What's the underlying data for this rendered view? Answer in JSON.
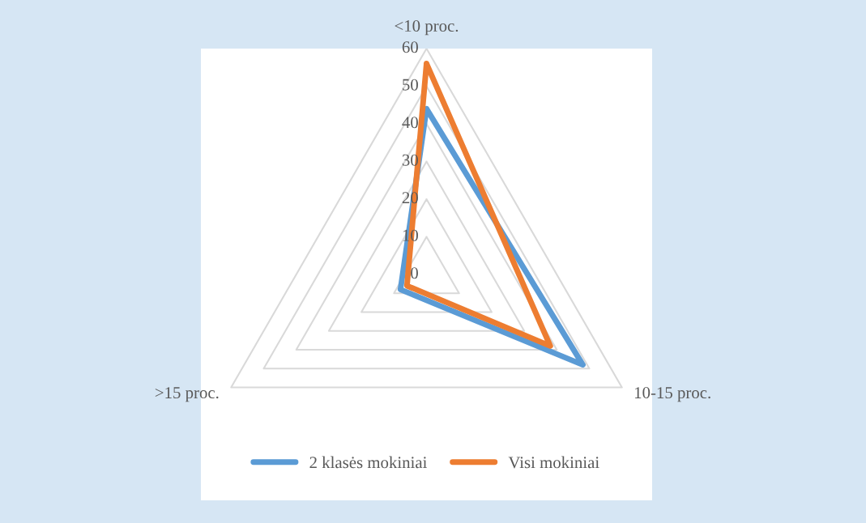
{
  "chart_data": {
    "type": "radar",
    "categories": [
      "<10 proc.",
      "10-15 proc.",
      ">15 proc."
    ],
    "series": [
      {
        "name": "2 klasės mokiniai",
        "color": "#5b9bd5",
        "values": [
          44,
          48,
          8
        ]
      },
      {
        "name": "Visi mokiniai",
        "color": "#ed7d31",
        "values": [
          56,
          38,
          6
        ]
      }
    ],
    "ylim": [
      0,
      60
    ],
    "yticks": [
      0,
      10,
      20,
      30,
      40,
      50,
      60
    ],
    "grid": true,
    "legend": "bottom"
  }
}
